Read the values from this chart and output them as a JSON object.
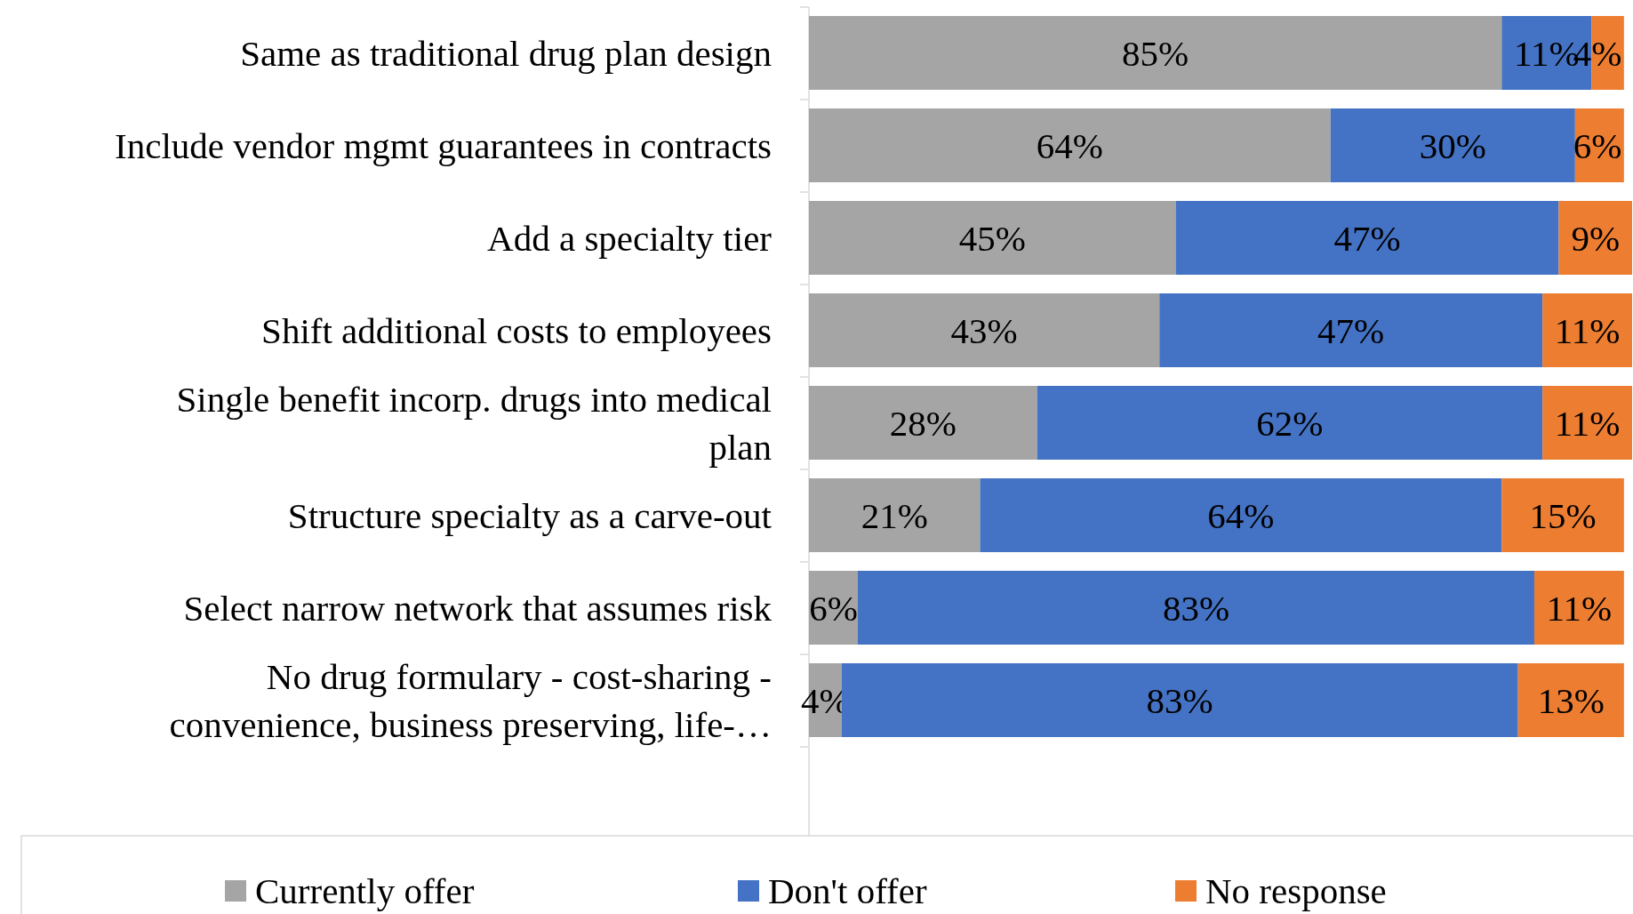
{
  "chart_data": {
    "type": "bar",
    "orientation": "horizontal",
    "stacked": true,
    "legend": "bottom",
    "xlim": [
      0,
      101
    ],
    "categories": [
      "Same as traditional drug plan design",
      "Include vendor mgmt guarantees in contracts",
      "Add a specialty tier",
      "Shift additional costs to employees",
      "Single benefit incorp. drugs into medical plan",
      "Structure specialty as a carve-out",
      "Select narrow network that assumes risk",
      "No drug formulary - cost-sharing - convenience, business preserving, life-…"
    ],
    "series": [
      {
        "name": "Currently offer",
        "color": "#a5a5a5",
        "values": [
          85,
          64,
          45,
          43,
          28,
          21,
          6,
          4
        ],
        "value_labels": [
          "85%",
          "64%",
          "45%",
          "43%",
          "28%",
          "21%",
          "6%",
          "4%"
        ]
      },
      {
        "name": "Don't offer",
        "color": "#4472c4",
        "values": [
          11,
          30,
          47,
          47,
          62,
          64,
          83,
          83
        ],
        "value_labels": [
          "11%",
          "30%",
          "47%",
          "47%",
          "62%",
          "64%",
          "83%",
          "83%"
        ]
      },
      {
        "name": "No response",
        "color": "#ed7d31",
        "values": [
          4,
          6,
          9,
          11,
          11,
          15,
          11,
          13
        ],
        "value_labels": [
          "4%",
          "6%",
          "9%",
          "11%",
          "11%",
          "15%",
          "11%",
          "13%"
        ]
      }
    ]
  }
}
